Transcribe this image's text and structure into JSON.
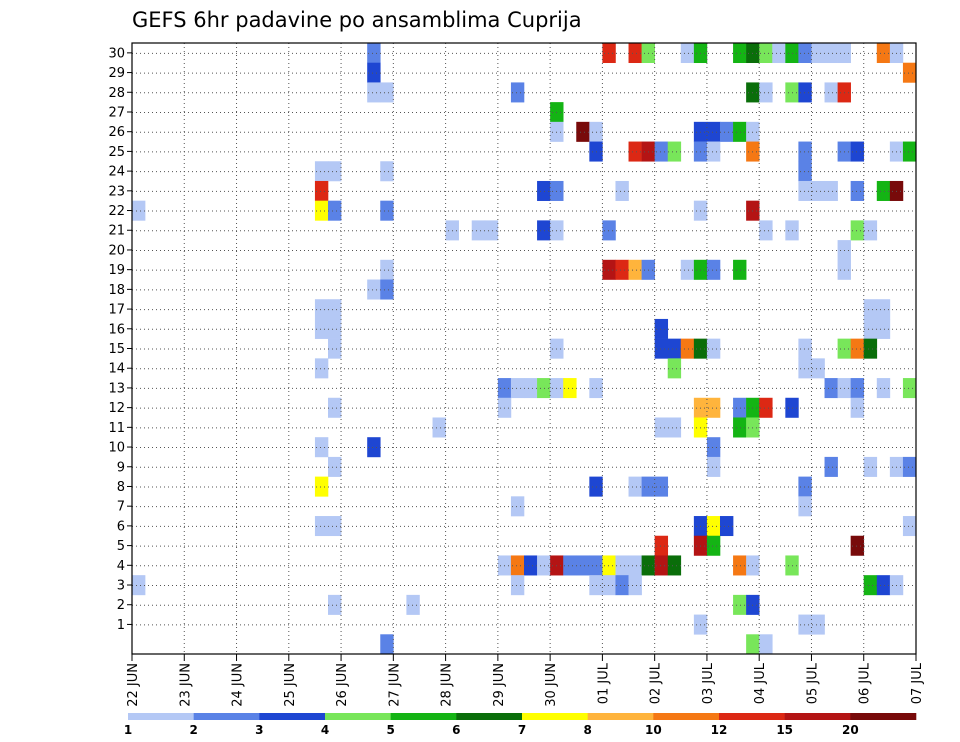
{
  "chart_data": {
    "type": "heatmap",
    "title": "GEFS 6hr padavine po ansamblima Cuprija",
    "xlabel": "",
    "ylabel": "",
    "x_ticks": [
      "22 JUN",
      "23 JUN",
      "24 JUN",
      "25 JUN",
      "26 JUN",
      "27 JUN",
      "28 JUN",
      "29 JUN",
      "30 JUN",
      "01 JUL",
      "02 JUL",
      "03 JUL",
      "04 JUL",
      "05 JUL",
      "06 JUL",
      "07 JUL"
    ],
    "y_ticks": [
      1,
      2,
      3,
      4,
      5,
      6,
      7,
      8,
      9,
      10,
      11,
      12,
      13,
      14,
      15,
      16,
      17,
      18,
      19,
      20,
      21,
      22,
      23,
      24,
      25,
      26,
      27,
      28,
      29,
      30
    ],
    "time_steps_per_day": 4,
    "members": 30,
    "grid": true,
    "colorbar": {
      "labels": [
        "1",
        "2",
        "3",
        "4",
        "5",
        "6",
        "7",
        "8",
        "10",
        "12",
        "15",
        "20"
      ],
      "colors": [
        "#b4c8f5",
        "#5a82e6",
        "#1e46d2",
        "#78e65a",
        "#14b414",
        "#0a6e0a",
        "#ffff00",
        "#ffb43c",
        "#f57814",
        "#dc2814",
        "#b41414",
        "#780a0a"
      ]
    },
    "cells": [
      {
        "m": 30,
        "t": 18,
        "c": 1
      },
      {
        "m": 29,
        "t": 18,
        "c": 2
      },
      {
        "m": 28,
        "t": 18,
        "c": 0
      },
      {
        "m": 28,
        "t": 19,
        "c": 0
      },
      {
        "m": 30,
        "t": 36,
        "c": 9
      },
      {
        "m": 30,
        "t": 38,
        "c": 9
      },
      {
        "m": 30,
        "t": 39,
        "c": 3
      },
      {
        "m": 30,
        "t": 42,
        "c": 0
      },
      {
        "m": 30,
        "t": 43,
        "c": 4
      },
      {
        "m": 30,
        "t": 46,
        "c": 4
      },
      {
        "m": 30,
        "t": 47,
        "c": 5
      },
      {
        "m": 30,
        "t": 48,
        "c": 3
      },
      {
        "m": 30,
        "t": 49,
        "c": 0
      },
      {
        "m": 30,
        "t": 50,
        "c": 4
      },
      {
        "m": 30,
        "t": 51,
        "c": 1
      },
      {
        "m": 30,
        "t": 52,
        "c": 0
      },
      {
        "m": 30,
        "t": 53,
        "c": 0
      },
      {
        "m": 30,
        "t": 54,
        "c": 0
      },
      {
        "m": 30,
        "t": 57,
        "c": 8
      },
      {
        "m": 30,
        "t": 58,
        "c": 0
      },
      {
        "m": 29,
        "t": 59,
        "c": 8
      },
      {
        "m": 28,
        "t": 29,
        "c": 1
      },
      {
        "m": 28,
        "t": 47,
        "c": 5
      },
      {
        "m": 28,
        "t": 48,
        "c": 0
      },
      {
        "m": 28,
        "t": 50,
        "c": 3
      },
      {
        "m": 28,
        "t": 51,
        "c": 2
      },
      {
        "m": 28,
        "t": 53,
        "c": 0
      },
      {
        "m": 28,
        "t": 54,
        "c": 9
      },
      {
        "m": 27,
        "t": 32,
        "c": 4
      },
      {
        "m": 26,
        "t": 32,
        "c": 0
      },
      {
        "m": 26,
        "t": 34,
        "c": 11
      },
      {
        "m": 26,
        "t": 35,
        "c": 0
      },
      {
        "m": 26,
        "t": 43,
        "c": 2
      },
      {
        "m": 26,
        "t": 44,
        "c": 2
      },
      {
        "m": 26,
        "t": 45,
        "c": 1
      },
      {
        "m": 26,
        "t": 46,
        "c": 4
      },
      {
        "m": 26,
        "t": 47,
        "c": 0
      },
      {
        "m": 25,
        "t": 35,
        "c": 2
      },
      {
        "m": 25,
        "t": 38,
        "c": 9
      },
      {
        "m": 25,
        "t": 39,
        "c": 10
      },
      {
        "m": 25,
        "t": 40,
        "c": 1
      },
      {
        "m": 25,
        "t": 41,
        "c": 3
      },
      {
        "m": 25,
        "t": 43,
        "c": 1
      },
      {
        "m": 25,
        "t": 44,
        "c": 0
      },
      {
        "m": 25,
        "t": 47,
        "c": 8
      },
      {
        "m": 25,
        "t": 51,
        "c": 1
      },
      {
        "m": 25,
        "t": 54,
        "c": 1
      },
      {
        "m": 25,
        "t": 55,
        "c": 2
      },
      {
        "m": 25,
        "t": 58,
        "c": 0
      },
      {
        "m": 25,
        "t": 59,
        "c": 4
      },
      {
        "m": 24,
        "t": 14,
        "c": 0
      },
      {
        "m": 24,
        "t": 15,
        "c": 0
      },
      {
        "m": 24,
        "t": 19,
        "c": 0
      },
      {
        "m": 24,
        "t": 51,
        "c": 1
      },
      {
        "m": 23,
        "t": 14,
        "c": 9
      },
      {
        "m": 23,
        "t": 31,
        "c": 2
      },
      {
        "m": 23,
        "t": 32,
        "c": 1
      },
      {
        "m": 23,
        "t": 37,
        "c": 0
      },
      {
        "m": 23,
        "t": 51,
        "c": 0
      },
      {
        "m": 23,
        "t": 52,
        "c": 0
      },
      {
        "m": 23,
        "t": 53,
        "c": 0
      },
      {
        "m": 23,
        "t": 55,
        "c": 1
      },
      {
        "m": 23,
        "t": 57,
        "c": 4
      },
      {
        "m": 23,
        "t": 58,
        "c": 11
      },
      {
        "m": 22,
        "t": 0,
        "c": 0
      },
      {
        "m": 22,
        "t": 14,
        "c": 6
      },
      {
        "m": 22,
        "t": 15,
        "c": 1
      },
      {
        "m": 22,
        "t": 19,
        "c": 1
      },
      {
        "m": 22,
        "t": 43,
        "c": 0
      },
      {
        "m": 22,
        "t": 47,
        "c": 10
      },
      {
        "m": 21,
        "t": 24,
        "c": 0
      },
      {
        "m": 21,
        "t": 26,
        "c": 0
      },
      {
        "m": 21,
        "t": 27,
        "c": 0
      },
      {
        "m": 21,
        "t": 31,
        "c": 2
      },
      {
        "m": 21,
        "t": 32,
        "c": 0
      },
      {
        "m": 21,
        "t": 36,
        "c": 1
      },
      {
        "m": 21,
        "t": 48,
        "c": 0
      },
      {
        "m": 21,
        "t": 50,
        "c": 0
      },
      {
        "m": 21,
        "t": 55,
        "c": 3
      },
      {
        "m": 21,
        "t": 56,
        "c": 0
      },
      {
        "m": 20,
        "t": 54,
        "c": 0
      },
      {
        "m": 19,
        "t": 19,
        "c": 0
      },
      {
        "m": 19,
        "t": 36,
        "c": 10
      },
      {
        "m": 19,
        "t": 37,
        "c": 9
      },
      {
        "m": 19,
        "t": 38,
        "c": 7
      },
      {
        "m": 19,
        "t": 39,
        "c": 1
      },
      {
        "m": 19,
        "t": 42,
        "c": 0
      },
      {
        "m": 19,
        "t": 43,
        "c": 4
      },
      {
        "m": 19,
        "t": 44,
        "c": 1
      },
      {
        "m": 19,
        "t": 46,
        "c": 4
      },
      {
        "m": 19,
        "t": 54,
        "c": 0
      },
      {
        "m": 18,
        "t": 18,
        "c": 0
      },
      {
        "m": 18,
        "t": 19,
        "c": 1
      },
      {
        "m": 17,
        "t": 14,
        "c": 0
      },
      {
        "m": 17,
        "t": 15,
        "c": 0
      },
      {
        "m": 17,
        "t": 56,
        "c": 0
      },
      {
        "m": 17,
        "t": 57,
        "c": 0
      },
      {
        "m": 16,
        "t": 14,
        "c": 0
      },
      {
        "m": 16,
        "t": 15,
        "c": 0
      },
      {
        "m": 16,
        "t": 40,
        "c": 2
      },
      {
        "m": 16,
        "t": 56,
        "c": 0
      },
      {
        "m": 16,
        "t": 57,
        "c": 0
      },
      {
        "m": 15,
        "t": 15,
        "c": 0
      },
      {
        "m": 15,
        "t": 32,
        "c": 0
      },
      {
        "m": 15,
        "t": 40,
        "c": 2
      },
      {
        "m": 15,
        "t": 41,
        "c": 2
      },
      {
        "m": 15,
        "t": 42,
        "c": 8
      },
      {
        "m": 15,
        "t": 43,
        "c": 5
      },
      {
        "m": 15,
        "t": 44,
        "c": 0
      },
      {
        "m": 15,
        "t": 51,
        "c": 0
      },
      {
        "m": 15,
        "t": 54,
        "c": 3
      },
      {
        "m": 15,
        "t": 55,
        "c": 8
      },
      {
        "m": 15,
        "t": 56,
        "c": 5
      },
      {
        "m": 14,
        "t": 14,
        "c": 0
      },
      {
        "m": 14,
        "t": 41,
        "c": 3
      },
      {
        "m": 14,
        "t": 51,
        "c": 0
      },
      {
        "m": 14,
        "t": 52,
        "c": 0
      },
      {
        "m": 13,
        "t": 28,
        "c": 1
      },
      {
        "m": 13,
        "t": 29,
        "c": 0
      },
      {
        "m": 13,
        "t": 30,
        "c": 0
      },
      {
        "m": 13,
        "t": 31,
        "c": 3
      },
      {
        "m": 13,
        "t": 32,
        "c": 0
      },
      {
        "m": 13,
        "t": 33,
        "c": 6
      },
      {
        "m": 13,
        "t": 35,
        "c": 0
      },
      {
        "m": 13,
        "t": 53,
        "c": 1
      },
      {
        "m": 13,
        "t": 54,
        "c": 0
      },
      {
        "m": 13,
        "t": 55,
        "c": 1
      },
      {
        "m": 13,
        "t": 57,
        "c": 0
      },
      {
        "m": 13,
        "t": 59,
        "c": 3
      },
      {
        "m": 12,
        "t": 15,
        "c": 0
      },
      {
        "m": 12,
        "t": 28,
        "c": 0
      },
      {
        "m": 12,
        "t": 43,
        "c": 7
      },
      {
        "m": 12,
        "t": 44,
        "c": 7
      },
      {
        "m": 12,
        "t": 46,
        "c": 1
      },
      {
        "m": 12,
        "t": 47,
        "c": 4
      },
      {
        "m": 12,
        "t": 48,
        "c": 9
      },
      {
        "m": 12,
        "t": 50,
        "c": 2
      },
      {
        "m": 12,
        "t": 55,
        "c": 0
      },
      {
        "m": 11,
        "t": 23,
        "c": 0
      },
      {
        "m": 11,
        "t": 40,
        "c": 0
      },
      {
        "m": 11,
        "t": 41,
        "c": 0
      },
      {
        "m": 11,
        "t": 43,
        "c": 6
      },
      {
        "m": 11,
        "t": 46,
        "c": 4
      },
      {
        "m": 11,
        "t": 47,
        "c": 3
      },
      {
        "m": 10,
        "t": 14,
        "c": 0
      },
      {
        "m": 10,
        "t": 18,
        "c": 2
      },
      {
        "m": 10,
        "t": 44,
        "c": 1
      },
      {
        "m": 9,
        "t": 15,
        "c": 0
      },
      {
        "m": 9,
        "t": 44,
        "c": 0
      },
      {
        "m": 9,
        "t": 53,
        "c": 1
      },
      {
        "m": 9,
        "t": 56,
        "c": 0
      },
      {
        "m": 9,
        "t": 58,
        "c": 0
      },
      {
        "m": 9,
        "t": 59,
        "c": 1
      },
      {
        "m": 8,
        "t": 14,
        "c": 6
      },
      {
        "m": 8,
        "t": 35,
        "c": 2
      },
      {
        "m": 8,
        "t": 38,
        "c": 0
      },
      {
        "m": 8,
        "t": 39,
        "c": 1
      },
      {
        "m": 8,
        "t": 40,
        "c": 1
      },
      {
        "m": 8,
        "t": 51,
        "c": 1
      },
      {
        "m": 7,
        "t": 29,
        "c": 0
      },
      {
        "m": 7,
        "t": 51,
        "c": 0
      },
      {
        "m": 6,
        "t": 14,
        "c": 0
      },
      {
        "m": 6,
        "t": 15,
        "c": 0
      },
      {
        "m": 6,
        "t": 43,
        "c": 2
      },
      {
        "m": 6,
        "t": 44,
        "c": 6
      },
      {
        "m": 6,
        "t": 45,
        "c": 2
      },
      {
        "m": 6,
        "t": 59,
        "c": 0
      },
      {
        "m": 5,
        "t": 40,
        "c": 9
      },
      {
        "m": 5,
        "t": 43,
        "c": 10
      },
      {
        "m": 5,
        "t": 44,
        "c": 4
      },
      {
        "m": 5,
        "t": 55,
        "c": 11
      },
      {
        "m": 4,
        "t": 28,
        "c": 0
      },
      {
        "m": 4,
        "t": 29,
        "c": 8
      },
      {
        "m": 4,
        "t": 30,
        "c": 2
      },
      {
        "m": 4,
        "t": 31,
        "c": 0
      },
      {
        "m": 4,
        "t": 32,
        "c": 10
      },
      {
        "m": 4,
        "t": 33,
        "c": 1
      },
      {
        "m": 4,
        "t": 34,
        "c": 1
      },
      {
        "m": 4,
        "t": 35,
        "c": 1
      },
      {
        "m": 4,
        "t": 36,
        "c": 6
      },
      {
        "m": 4,
        "t": 37,
        "c": 0
      },
      {
        "m": 4,
        "t": 38,
        "c": 0
      },
      {
        "m": 4,
        "t": 39,
        "c": 5
      },
      {
        "m": 4,
        "t": 40,
        "c": 10
      },
      {
        "m": 4,
        "t": 41,
        "c": 5
      },
      {
        "m": 4,
        "t": 46,
        "c": 8
      },
      {
        "m": 4,
        "t": 47,
        "c": 0
      },
      {
        "m": 4,
        "t": 50,
        "c": 3
      },
      {
        "m": 3,
        "t": 0,
        "c": 0
      },
      {
        "m": 3,
        "t": 29,
        "c": 0
      },
      {
        "m": 3,
        "t": 35,
        "c": 0
      },
      {
        "m": 3,
        "t": 36,
        "c": 0
      },
      {
        "m": 3,
        "t": 37,
        "c": 1
      },
      {
        "m": 3,
        "t": 38,
        "c": 0
      },
      {
        "m": 3,
        "t": 56,
        "c": 4
      },
      {
        "m": 3,
        "t": 57,
        "c": 2
      },
      {
        "m": 3,
        "t": 58,
        "c": 0
      },
      {
        "m": 2,
        "t": 15,
        "c": 0
      },
      {
        "m": 2,
        "t": 21,
        "c": 0
      },
      {
        "m": 2,
        "t": 46,
        "c": 3
      },
      {
        "m": 2,
        "t": 47,
        "c": 2
      },
      {
        "m": 1,
        "t": 43,
        "c": 0
      },
      {
        "m": 1,
        "t": 51,
        "c": 0
      },
      {
        "m": 1,
        "t": 52,
        "c": 0
      },
      {
        "m": 0,
        "t": 19,
        "c": 1
      },
      {
        "m": 0,
        "t": 47,
        "c": 3
      },
      {
        "m": 0,
        "t": 48,
        "c": 0
      }
    ]
  }
}
